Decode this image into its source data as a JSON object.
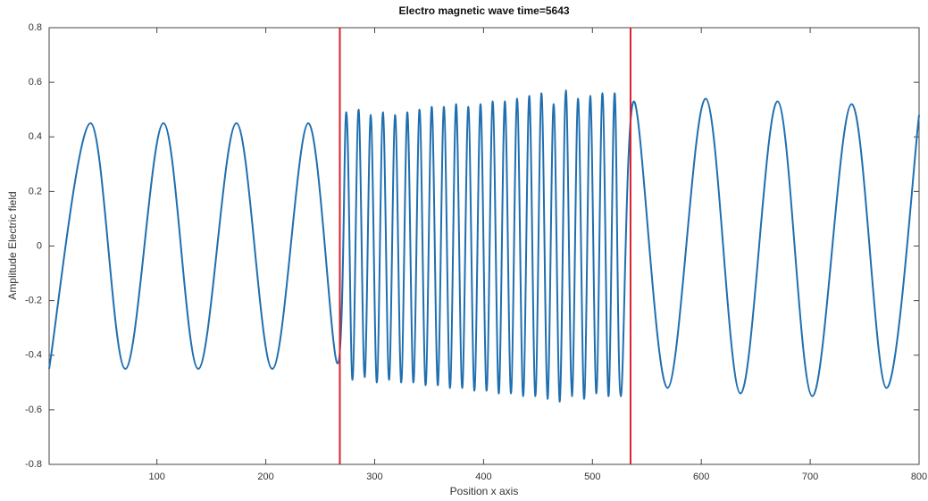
{
  "chart_data": {
    "type": "line",
    "title": "Electro magnetic wave time=5643",
    "x_label": "Position x axis",
    "y_label": "Amplitude Electric field",
    "x": [
      1,
      39,
      71,
      106,
      138,
      173,
      206,
      239,
      266,
      274,
      279.6,
      285.2,
      290.8,
      296.4,
      302,
      307.6,
      313.2,
      318.8,
      324.4,
      330,
      335.6,
      341.2,
      346.8,
      352.4,
      358,
      363.6,
      369.2,
      374.8,
      380.4,
      386,
      391.6,
      397.2,
      402.8,
      408.4,
      414,
      419.6,
      425.2,
      430.8,
      436.4,
      442,
      447.6,
      453.2,
      458.8,
      464.4,
      470,
      475.6,
      481.2,
      486.8,
      492.4,
      498,
      503.6,
      509.2,
      514.8,
      520.4,
      526,
      538,
      569,
      604,
      636,
      670,
      702,
      738,
      770,
      800
    ],
    "series": [
      {
        "color": "#1f6fb0",
        "values": [
          -0.45,
          0.45,
          -0.45,
          0.45,
          -0.45,
          0.45,
          -0.45,
          0.45,
          -0.43,
          0.49,
          -0.49,
          0.5,
          -0.48,
          0.48,
          -0.5,
          0.49,
          -0.49,
          0.48,
          -0.5,
          0.49,
          -0.5,
          0.5,
          -0.51,
          0.51,
          -0.51,
          0.51,
          -0.52,
          0.52,
          -0.52,
          0.51,
          -0.53,
          0.52,
          -0.53,
          0.53,
          -0.54,
          0.53,
          -0.54,
          0.54,
          -0.55,
          0.55,
          -0.55,
          0.56,
          -0.56,
          0.52,
          -0.57,
          0.57,
          -0.55,
          0.54,
          -0.56,
          0.55,
          -0.54,
          0.56,
          -0.55,
          0.56,
          -0.55,
          0.53,
          -0.52,
          0.54,
          -0.54,
          0.53,
          -0.55,
          0.52,
          -0.52,
          0.48
        ]
      }
    ],
    "xlim": [
      1,
      800
    ],
    "ylim": [
      -0.8,
      0.8
    ],
    "xticks": [
      100,
      200,
      300,
      400,
      500,
      600,
      700,
      800
    ],
    "yticks": [
      -0.8,
      -0.6,
      -0.4,
      -0.2,
      0,
      0.2,
      0.4,
      0.6,
      0.8
    ],
    "grid": false,
    "vlines": [
      268,
      535
    ],
    "vline_color": "#d9202e"
  }
}
